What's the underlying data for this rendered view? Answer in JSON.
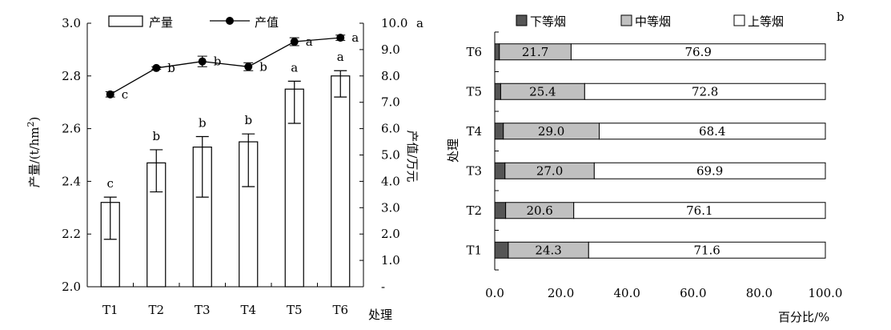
{
  "chart_data": [
    {
      "type": "bar+line",
      "panel_label": "a",
      "categories": [
        "T1",
        "T2",
        "T3",
        "T4",
        "T5",
        "T6"
      ],
      "xlabel": "处理",
      "ylabel": "产量/(t/hm²)",
      "ylabel_main": "产量/(t/hm",
      "ylabel_sup": "2",
      "ylabel_tail": ")",
      "y2label": "产值/万元",
      "ylim": [
        2.0,
        3.0
      ],
      "yticks": [
        "2.0",
        "2.2",
        "2.4",
        "2.6",
        "2.8",
        "3.0"
      ],
      "y2lim": [
        0,
        10
      ],
      "y2ticks": [
        "-",
        "1.0",
        "2.0",
        "3.0",
        "4.0",
        "5.0",
        "6.0",
        "7.0",
        "8.0",
        "9.0",
        "10.0"
      ],
      "legend": [
        "产量",
        "产值"
      ],
      "legend_placement": "top",
      "series": [
        {
          "name": "产量",
          "kind": "bar",
          "axis": "left",
          "values": [
            2.32,
            2.47,
            2.53,
            2.55,
            2.75,
            2.8
          ],
          "err_low": [
            2.18,
            2.36,
            2.34,
            2.38,
            2.62,
            2.72
          ],
          "err_high": [
            2.34,
            2.52,
            2.57,
            2.58,
            2.78,
            2.82
          ],
          "sig": [
            "c",
            "b",
            "b",
            "b",
            "a",
            "a"
          ]
        },
        {
          "name": "产值",
          "kind": "line",
          "axis": "right",
          "values": [
            7.3,
            8.3,
            8.55,
            8.35,
            9.3,
            9.45
          ],
          "err_low": [
            7.2,
            8.25,
            8.35,
            8.2,
            9.15,
            9.35
          ],
          "err_high": [
            7.4,
            8.35,
            8.75,
            8.5,
            9.45,
            9.55
          ],
          "sig": [
            "c",
            "b",
            "b",
            "b",
            "a",
            "a"
          ]
        }
      ]
    },
    {
      "type": "stacked-bar-horizontal",
      "panel_label": "b",
      "categories": [
        "T1",
        "T2",
        "T3",
        "T4",
        "T5",
        "T6"
      ],
      "xlabel": "百分比/%",
      "ylabel": "处理",
      "xlim": [
        0,
        100
      ],
      "xticks": [
        "0.0",
        "20.0",
        "40.0",
        "60.0",
        "80.0",
        "100.0"
      ],
      "legend": [
        "下等烟",
        "中等烟",
        "上等烟"
      ],
      "legend_placement": "top",
      "series": [
        {
          "name": "下等烟",
          "color": "#555555",
          "values": [
            4.1,
            3.3,
            3.1,
            2.6,
            1.8,
            1.4
          ]
        },
        {
          "name": "中等烟",
          "color": "#c0c0c0",
          "values": [
            24.3,
            20.6,
            27.0,
            29.0,
            25.4,
            21.7
          ],
          "labels": [
            "24.3",
            "20.6",
            "27.0",
            "29.0",
            "25.4",
            "21.7"
          ]
        },
        {
          "name": "上等烟",
          "color": "#ffffff",
          "values": [
            71.6,
            76.1,
            69.9,
            68.4,
            72.8,
            76.9
          ],
          "labels": [
            "71.6",
            "76.1",
            "69.9",
            "68.4",
            "72.8",
            "76.9"
          ]
        }
      ]
    }
  ]
}
